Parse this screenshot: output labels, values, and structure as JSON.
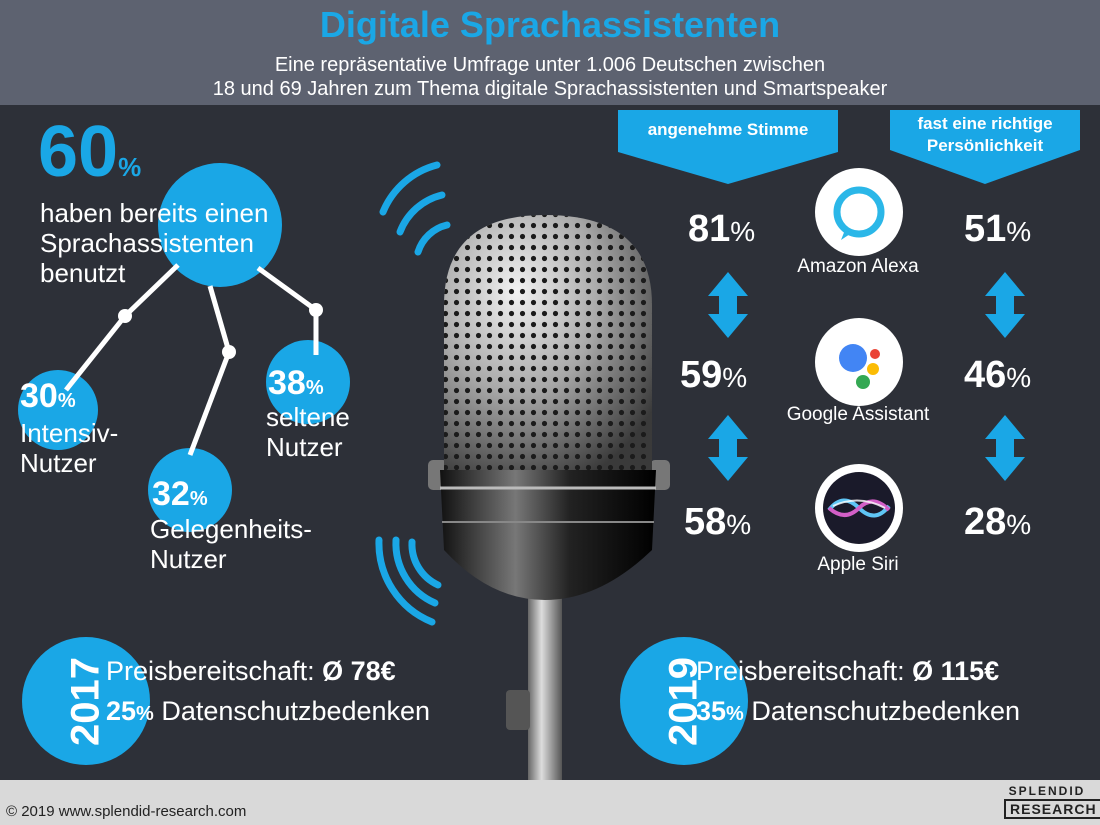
{
  "header": {
    "title": "Digitale Sprachassistenten",
    "subtitle_line1": "Eine repräsentative Umfrage unter 1.006 Deutschen zwischen",
    "subtitle_line2": "18 und 69 Jahren zum Thema digitale Sprachassistenten und Smartspeaker"
  },
  "usage": {
    "main_value": "60",
    "main_label_1": "haben bereits einen",
    "main_label_2": "Sprachassistenten",
    "main_label_3": "benutzt",
    "intensive_value": "30",
    "intensive_label_1": "Intensiv-",
    "intensive_label_2": "Nutzer",
    "occasional_value": "32",
    "occasional_label_1": "Gelegenheits-",
    "occasional_label_2": "Nutzer",
    "rare_value": "38",
    "rare_label_1": "seltene",
    "rare_label_2": "Nutzer",
    "percent_sign": "%"
  },
  "comparison": {
    "col1_header": "angenehme Stimme",
    "col2_header_1": "fast eine richtige",
    "col2_header_2": "Persönlichkeit",
    "assistants": [
      {
        "name": "Amazon Alexa",
        "stimme": "81",
        "persoenlichkeit": "51"
      },
      {
        "name": "Google Assistant",
        "stimme": "59",
        "persoenlichkeit": "46"
      },
      {
        "name": "Apple Siri",
        "stimme": "58",
        "persoenlichkeit": "28"
      }
    ]
  },
  "years": {
    "y2017": {
      "year": "2017",
      "price_label": "Preisbereitschaft:",
      "price_value": "Ø 78€",
      "privacy_value": "25",
      "privacy_label": "Datenschutzbedenken"
    },
    "y2019": {
      "year": "2019",
      "price_label": "Preisbereitschaft:",
      "price_value": "Ø 115€",
      "privacy_value": "35",
      "privacy_label": "Datenschutzbedenken"
    }
  },
  "footer": {
    "copyright": "© 2019 www.splendid-research.com",
    "logo_line1": "SPLENDID",
    "logo_line2": "RESEARCH"
  },
  "colors": {
    "accent": "#1aa7e6",
    "background": "#2d3038",
    "header": "#5d6270"
  },
  "icons": [
    "microphone-icon",
    "amazon-alexa-icon",
    "google-assistant-icon",
    "apple-siri-icon",
    "double-arrow-icon",
    "sound-wave-icon"
  ]
}
